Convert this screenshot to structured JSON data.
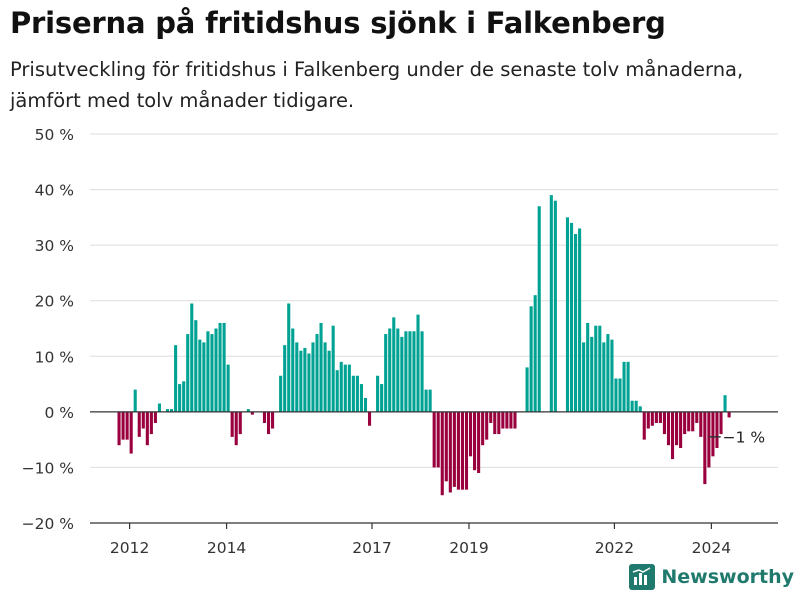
{
  "title": "Priserna på fritidshus sjönk i Falkenberg",
  "subtitle": "Prisutveckling för fritidshus i Falkenberg under de senaste tolv månaderna, jämfört med tolv månader tidigare.",
  "brand": "Newsworthy",
  "colors": {
    "positive": "#00a393",
    "negative": "#99003d",
    "grid": "#dddddd",
    "axis": "#333333",
    "brand": "#1f7a6d"
  },
  "chart_data": {
    "type": "bar",
    "start": "2011-10",
    "ylim": [
      -20,
      50
    ],
    "yticks": [
      -20,
      -10,
      0,
      10,
      20,
      30,
      40,
      50
    ],
    "ytick_labels": [
      "−20 %",
      "−10 %",
      "0 %",
      "10 %",
      "20 %",
      "30 %",
      "40 %",
      "50 %"
    ],
    "xticks": [
      {
        "year": 2012,
        "label": "2012"
      },
      {
        "year": 2014,
        "label": "2014"
      },
      {
        "year": 2017,
        "label": "2017"
      },
      {
        "year": 2019,
        "label": "2019"
      },
      {
        "year": 2022,
        "label": "2022"
      },
      {
        "year": 2024,
        "label": "2024"
      }
    ],
    "values": [
      -6,
      -5,
      -5,
      -7.5,
      4,
      -4.5,
      -3,
      -6,
      -4,
      -2,
      1.5,
      0,
      0.5,
      0.5,
      12,
      5,
      5.5,
      14,
      19.5,
      16.5,
      13,
      12.5,
      14.5,
      14,
      15,
      16,
      16,
      8.5,
      -4.5,
      -6,
      -4,
      0,
      0.5,
      -0.5,
      0,
      0,
      -2,
      -4,
      -3,
      0,
      6.5,
      12,
      19.5,
      15,
      12.5,
      11,
      11.5,
      10.5,
      12.5,
      14,
      16,
      12.5,
      11,
      15.5,
      7.5,
      9,
      8.5,
      8.5,
      6.5,
      6.5,
      5,
      2.5,
      -2.5,
      0,
      6.5,
      5,
      14,
      15,
      17,
      15,
      13.5,
      14.5,
      14.5,
      14.5,
      17.5,
      14.5,
      4,
      4,
      -10,
      -10,
      -15,
      -12.5,
      -14.5,
      -13.5,
      -14,
      -14,
      -14,
      -8,
      -10.5,
      -11,
      -6,
      -5,
      -2,
      -4,
      -4,
      -3,
      -3,
      -3,
      -3,
      0,
      0,
      8,
      19,
      21,
      37,
      0,
      0,
      39,
      38,
      0,
      0,
      35,
      34,
      32,
      33,
      12.5,
      16,
      13.5,
      15.5,
      15.5,
      12.5,
      14,
      13,
      6,
      6,
      9,
      9,
      2,
      2,
      1,
      -5,
      -3,
      -2.5,
      -2,
      -2,
      -4,
      -6,
      -8.5,
      -6,
      -6.5,
      -4,
      -3.5,
      -3.5,
      -2,
      -4.5,
      -13,
      -10,
      -8,
      -6.5,
      -4,
      3,
      -1
    ],
    "annotation": {
      "text": "−1 %"
    }
  }
}
